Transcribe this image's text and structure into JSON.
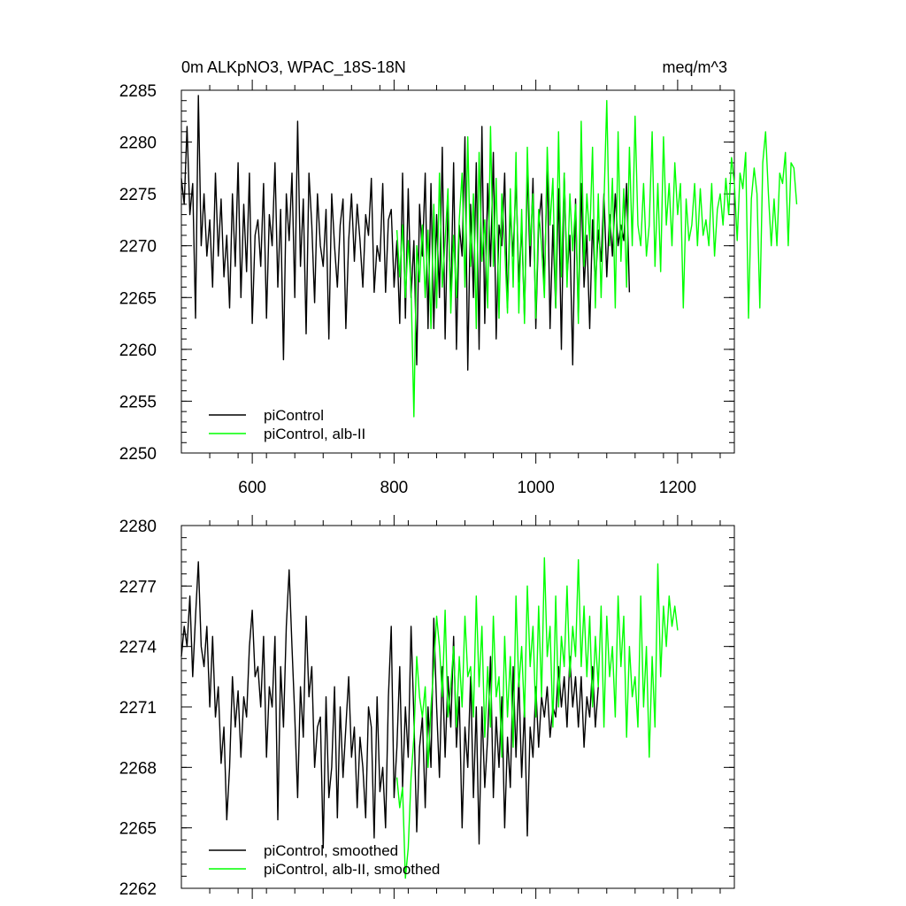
{
  "chart_data": [
    {
      "type": "line",
      "title_left": "0m ALKpNO3, WPAC_18S-18N",
      "title_right": "meq/m^3",
      "xlabel": "",
      "ylabel": "",
      "xlim": [
        500,
        1280
      ],
      "ylim": [
        2250,
        2285
      ],
      "x_ticks": [
        600,
        800,
        1000,
        1200
      ],
      "y_ticks": [
        2250,
        2255,
        2260,
        2265,
        2270,
        2275,
        2280,
        2285
      ],
      "grid": false,
      "legend_position": "bottom-left",
      "series": [
        {
          "name": "piControl",
          "color": "#000000",
          "x_start": 500,
          "step": 4,
          "values": [
            2276.5,
            2274.0,
            2281.5,
            2273.0,
            2276.0,
            2263.0,
            2284.5,
            2270.0,
            2275.0,
            2269.0,
            2272.5,
            2266.0,
            2277.0,
            2269.0,
            2274.5,
            2267.0,
            2271.0,
            2264.0,
            2275.0,
            2268.0,
            2278.0,
            2265.0,
            2274.0,
            2267.5,
            2277.0,
            2262.5,
            2271.0,
            2272.5,
            2268.0,
            2276.0,
            2263.0,
            2273.0,
            2270.0,
            2278.0,
            2266.0,
            2273.5,
            2259.0,
            2275.0,
            2270.5,
            2277.0,
            2265.0,
            2282.0,
            2268.0,
            2274.5,
            2261.5,
            2277.0,
            2272.0,
            2264.5,
            2275.0,
            2270.0,
            2268.0,
            2273.5,
            2261.0,
            2275.0,
            2270.0,
            2266.0,
            2272.0,
            2274.5,
            2262.0,
            2270.5,
            2275.0,
            2268.5,
            2274.0,
            2270.5,
            2266.0,
            2273.0,
            2271.0,
            2276.5,
            2265.5,
            2270.0,
            2268.5,
            2276.0,
            2265.5,
            2272.5,
            2273.5,
            2266.0,
            2270.5,
            2262.5,
            2277.0,
            2263.0,
            2275.5,
            2265.0,
            2270.5,
            2258.5,
            2274.0,
            2269.0,
            2277.0,
            2262.0,
            2276.0,
            2262.0,
            2273.0,
            2265.0,
            2279.5,
            2261.0,
            2274.0,
            2264.5,
            2278.0,
            2260.0,
            2272.0,
            2269.0,
            2280.5,
            2258.0,
            2274.0,
            2265.0,
            2278.0,
            2260.0,
            2281.5,
            2262.5,
            2276.0,
            2268.0,
            2279.0,
            2261.0,
            2272.0,
            2270.0,
            2277.0,
            2264.0,
            2273.5,
            2269.0,
            2276.5,
            2266.5,
            2272.0,
            2263.0,
            2277.5,
            2268.0,
            2276.5,
            2262.0,
            2272.0,
            2275.0,
            2266.0,
            2278.0,
            2262.0,
            2272.0,
            2264.0,
            2275.5,
            2260.0,
            2277.0,
            2267.0,
            2271.0,
            2258.5,
            2274.5,
            2263.0,
            2276.0,
            2266.0,
            2271.0,
            2262.0,
            2272.5,
            2266.0,
            2271.5,
            2268.5,
            2275.0,
            2267.0,
            2273.0,
            2269.0,
            2275.0,
            2270.0,
            2272.0,
            2270.5,
            2276.0,
            2265.5
          ]
        },
        {
          "name": "piControl, alb-II",
          "color": "#00ff00",
          "x_start": 804,
          "step": 4,
          "values": [
            2271.5,
            2267.0,
            2272.0,
            2265.0,
            2270.5,
            2266.0,
            2253.5,
            2270.0,
            2266.5,
            2272.0,
            2265.0,
            2271.5,
            2262.0,
            2274.0,
            2264.0,
            2277.0,
            2266.0,
            2270.5,
            2275.5,
            2263.5,
            2271.0,
            2265.0,
            2272.5,
            2277.0,
            2266.0,
            2280.5,
            2268.0,
            2275.0,
            2262.0,
            2279.0,
            2268.5,
            2272.5,
            2264.0,
            2281.5,
            2268.0,
            2276.5,
            2263.0,
            2275.0,
            2270.0,
            2263.5,
            2275.5,
            2266.0,
            2279.0,
            2263.5,
            2273.5,
            2262.5,
            2279.5,
            2270.0,
            2275.0,
            2263.0,
            2273.5,
            2270.0,
            2265.0,
            2279.5,
            2272.0,
            2276.5,
            2264.0,
            2281.0,
            2267.0,
            2277.0,
            2266.0,
            2275.0,
            2269.5,
            2274.0,
            2262.5,
            2282.0,
            2268.0,
            2275.0,
            2270.5,
            2279.5,
            2264.0,
            2275.0,
            2265.0,
            2274.0,
            2284.0,
            2270.0,
            2276.5,
            2264.0,
            2281.0,
            2268.5,
            2275.5,
            2266.0,
            2279.5,
            2270.0,
            2282.5,
            2272.0,
            2270.0,
            2276.0,
            2269.0,
            2272.0,
            2281.0,
            2268.0,
            2276.0,
            2267.5,
            2280.5,
            2272.0,
            2276.0,
            2270.0,
            2278.0,
            2273.0,
            2276.0,
            2264.0,
            2274.5,
            2270.5,
            2272.0,
            2276.0,
            2270.0,
            2275.5,
            2271.0,
            2272.5,
            2270.0,
            2276.0,
            2269.0,
            2273.5,
            2275.0,
            2272.0,
            2276.5,
            2273.0,
            2278.5,
            2276.0,
            2270.5,
            2277.0,
            2275.5,
            2279.0,
            2263.0,
            2274.5,
            2277.5,
            2275.0,
            2264.0,
            2278.0,
            2281.0,
            2275.0,
            2270.0,
            2274.5,
            2270.0,
            2277.0,
            2276.0,
            2279.0,
            2270.0,
            2278.0,
            2277.5,
            2274.0
          ]
        }
      ],
      "legend": [
        {
          "label": "piControl",
          "color": "#000000"
        },
        {
          "label": "piControl, alb-II",
          "color": "#00ff00"
        }
      ]
    },
    {
      "type": "line",
      "title_left": "",
      "title_right": "",
      "xlabel": "",
      "ylabel": "",
      "xlim": [
        500,
        1280
      ],
      "ylim": [
        2262,
        2280
      ],
      "x_ticks": [
        600,
        800,
        1000,
        1200
      ],
      "x_tick_labels_shown": false,
      "y_ticks": [
        2262,
        2265,
        2268,
        2271,
        2274,
        2277,
        2280
      ],
      "grid": false,
      "legend_position": "bottom-left",
      "series": [
        {
          "name": "piControl, smoothed",
          "color": "#000000",
          "x_start": 500,
          "step": 4,
          "values": [
            2273.5,
            2275.0,
            2274.0,
            2276.5,
            2272.5,
            2275.5,
            2278.2,
            2274.0,
            2273.0,
            2275.0,
            2271.0,
            2274.5,
            2270.5,
            2272.0,
            2268.2,
            2270.0,
            2265.4,
            2268.0,
            2272.5,
            2270.0,
            2271.8,
            2268.5,
            2271.5,
            2270.5,
            2274.0,
            2275.8,
            2272.5,
            2273.0,
            2271.0,
            2274.5,
            2268.5,
            2272.0,
            2271.0,
            2274.5,
            2265.4,
            2273.0,
            2270.0,
            2275.0,
            2277.8,
            2274.0,
            2270.5,
            2266.5,
            2272.0,
            2269.5,
            2275.5,
            2271.5,
            2273.0,
            2268.0,
            2270.0,
            2270.5,
            2264.0,
            2271.5,
            2266.5,
            2268.0,
            2272.0,
            2265.5,
            2271.0,
            2267.5,
            2270.0,
            2272.5,
            2268.5,
            2270.0,
            2266.0,
            2269.5,
            2268.0,
            2265.5,
            2271.0,
            2270.0,
            2264.5,
            2271.5,
            2266.8,
            2268.0,
            2265.0,
            2271.5,
            2275.0,
            2266.5,
            2269.0,
            2273.0,
            2267.0,
            2271.0,
            2268.5,
            2275.0,
            2270.5,
            2264.8,
            2269.0,
            2270.5,
            2266.0,
            2271.0,
            2268.0,
            2275.4,
            2271.0,
            2267.5,
            2273.0,
            2268.5,
            2272.5,
            2270.0,
            2274.5,
            2269.0,
            2271.5,
            2265.0,
            2270.0,
            2268.0,
            2272.5,
            2266.5,
            2271.0,
            2264.2,
            2271.0,
            2267.0,
            2269.5,
            2273.5,
            2266.5,
            2270.5,
            2268.0,
            2271.5,
            2265.0,
            2269.5,
            2267.0,
            2273.0,
            2268.5,
            2272.5,
            2267.5,
            2271.0,
            2264.6,
            2270.0,
            2268.5,
            2272.0,
            2269.0,
            2271.5,
            2270.5,
            2272.0,
            2269.5,
            2271.0,
            2270.5,
            2273.0,
            2271.0,
            2272.5,
            2270.0,
            2273.5,
            2271.0,
            2272.5,
            2270.0,
            2272.5,
            2269.0,
            2271.5,
            2270.5,
            2273.0,
            2270.0,
            2272.0
          ]
        },
        {
          "name": "piControl, alb-II, smoothed",
          "color": "#00ff00",
          "x_start": 804,
          "step": 4,
          "values": [
            2267.5,
            2266.0,
            2267.0,
            2262.5,
            2264.0,
            2267.5,
            2269.5,
            2273.5,
            2271.5,
            2270.5,
            2272.0,
            2268.0,
            2271.0,
            2273.0,
            2275.5,
            2274.0,
            2271.5,
            2275.8,
            2270.5,
            2272.0,
            2274.0,
            2270.0,
            2273.5,
            2271.0,
            2275.5,
            2272.5,
            2273.0,
            2270.5,
            2276.5,
            2272.0,
            2275.0,
            2269.5,
            2273.0,
            2270.0,
            2275.5,
            2271.5,
            2272.5,
            2268.5,
            2274.5,
            2270.5,
            2273.5,
            2269.0,
            2276.5,
            2272.0,
            2274.0,
            2270.5,
            2277.0,
            2273.0,
            2275.0,
            2270.5,
            2276.0,
            2271.5,
            2278.4,
            2273.5,
            2275.0,
            2270.0,
            2276.5,
            2271.0,
            2274.5,
            2273.0,
            2277.0,
            2272.5,
            2275.0,
            2273.5,
            2278.3,
            2273.0,
            2276.0,
            2272.5,
            2275.5,
            2271.0,
            2274.5,
            2272.0,
            2276.0,
            2270.0,
            2275.5,
            2272.5,
            2274.0,
            2270.5,
            2276.5,
            2273.0,
            2275.5,
            2269.5,
            2274.0,
            2271.5,
            2272.5,
            2270.0,
            2276.5,
            2271.0,
            2274.0,
            2268.5,
            2273.5,
            2270.0,
            2278.1,
            2272.5,
            2276.0,
            2274.0,
            2276.5,
            2275.0,
            2276.0,
            2274.8
          ]
        }
      ],
      "legend": [
        {
          "label": "piControl, smoothed",
          "color": "#000000"
        },
        {
          "label": "piControl, alb-II, smoothed",
          "color": "#00ff00"
        }
      ]
    }
  ]
}
